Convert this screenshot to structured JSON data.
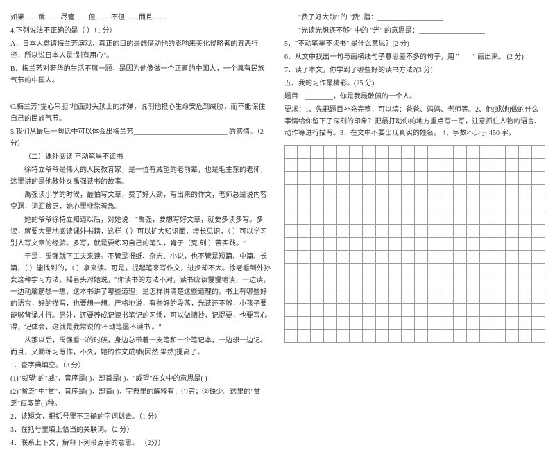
{
  "left": {
    "line1": "如果……就…… 尽管……但…… 不但……而且……",
    "line2": "4.下列说法不正确的是（ ）（1 分）",
    "lineA": "A．日本人邀请梅兰芳演戏，真正的目的是想借助他的影响来美化侵略者的丑恶行径，所以说日本人是\"别有用心\"。",
    "lineB": "B．梅兰芳对奢华的生活不屑一顾，是因为他像做一个正直的中国人，一个具有民族气节的中国人。",
    "lineC": "C.梅兰芳\"提心吊胆\"地面对头顶上的炸弹，说明他担心生命安危到威胁，而不能保住自己的民族气节。",
    "line5": "5.我们从最后一句话中可以体会出梅兰芳___________________________ 的感情。（2 分）",
    "title2": "（二）课外阅读                    不动笔墨不读书",
    "p1": "徐特立爷爷是伟大的人民教育家，是一位有威望的老前辈，也是毛主东的老师，这里讲的是他教外女禹强读书的故事。",
    "p2": "禹强读小学的时候，最怕写文章，费了好大劲，写出来的作文，老师总是说内容空洞，词汇贫乏，她心里非常着急。",
    "p3": "她的爷爷徐特立知道以后，对她说：\"禹强，要想写好文章，就要多读多写。多读，就要大量地阅读课外书籍，这样（   ）可以扩大知识面，增长见识，（   ）可以学习别人写文章的经验。多写，就是要练习自己的笔头，肯于（克  刻 ）苦实践。\"",
    "p4": "于是，禹强就下工夫来读。不管是报纸、杂志、小说，也不管是短篇、中篇、长篇，（   ）能找到的，（   ）拿来读。可是，提起笔来写作文，进步却不大。徐老看到外孙女这种学习方法，摇着头对她说，\"你读书的方法不对，读书应该慢慢地读，一边读，一边动脑筋想一想，这本书讲了哪些道理，是怎样讲清楚这些道理的。书上有哪些好的语言，好的描写，也要想一想。严格地说，有些好的段落，光读还不够，小孩子要能够背诵才行。另外，还要养成记读书笔记的习惯，可以做摘抄，记提要，也要写心得，记体会，这就是我常说的'不动笔墨不读书'。\"",
    "p5": "从那以后，禹强看书的时候，身边总带着一支笔和一个笔记本，一边想一边记。而且，又勤练习写作，不久，她的作文成绩(因然  果然)提高了。",
    "q1": "1．查字典填空。（3 分）",
    "q1a": "(1)\"威望\"的\"威\"，音序是(      )，部首是(      )，\"威望\"在文中的意思是(      )",
    "q1b": "(2)\"贫乏\"中\"贫\"，音序是(      )，部首(      )，字典里的解释有：①穷；②缺少。这里的\"贫乏\"应取第(      )种。",
    "q2": "2．读短文，把括号里不正确的字词划去。（1 分）",
    "q3": "3．在括号里填上恰当的关联词。（2 分）",
    "q4": "4．联系上下文，解释下列带点字的意思。       （2分）"
  },
  "right": {
    "r1": "\"费了好大劲\" 的 \"费\" 指：___________________",
    "r2": "\"光读光想还不够\" 中的 \"光\" 的意思是：___________________",
    "r5": "5．\"不动笔墨不读书\" 是什么意思？(2 分)",
    "r6": "6．从文中找出一句与画横线句子意思差不多的句子，用 \"____\" 画出来。   (2 分)",
    "r7": "7．读了本文，你学到了哪些好的读书方法?(3 分)",
    "r8": "五、我的习作最精彩。(25 分)",
    "r9": "题目：________，你是我最敬佩的一个人。",
    "r10": "要求：1、先把题目补充完整，可以填：爸爸、妈妈、老师等。2、他(或她)做的什么事情给你留下了深刻的印象？把最打动你的地方重点写一写，注意抓住人物的语言、动作等进行描写。3、在文中不要出现真实的姓名。   4、字数不少于 450 字。"
  },
  "grid": {
    "rows": 15,
    "cols": 20
  }
}
